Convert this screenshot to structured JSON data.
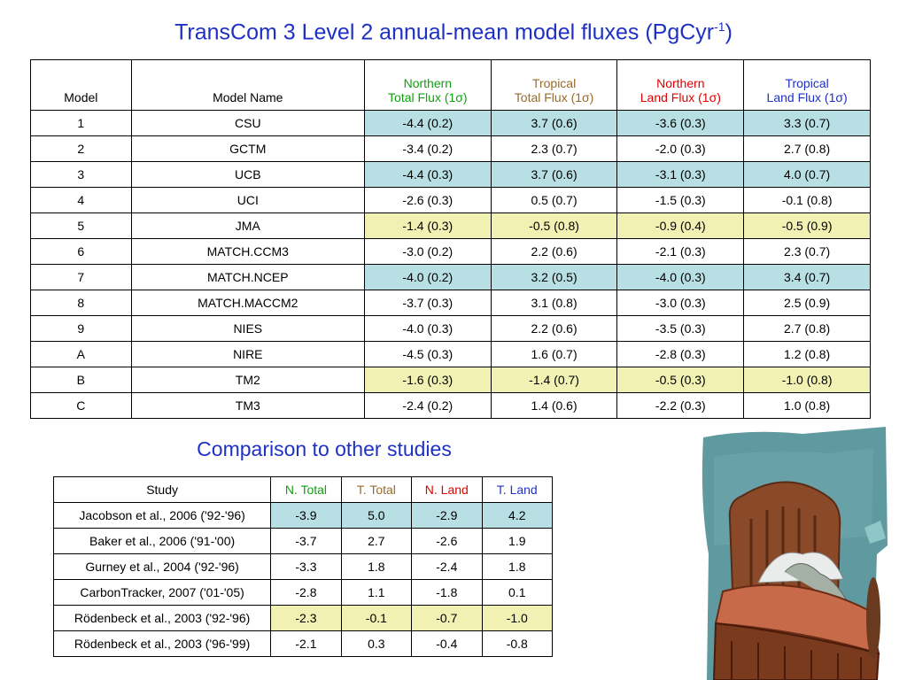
{
  "title": {
    "text": "TransCom 3 Level 2 annual-mean model fluxes (PgCyr",
    "sup": "-1",
    "close": ")"
  },
  "main_table": {
    "headers": {
      "model": "Model",
      "model_name": "Model Name",
      "n_total_1": "Northern",
      "n_total_2": "Total Flux (1σ)",
      "t_total_1": "Tropical",
      "t_total_2": "Total Flux (1σ)",
      "n_land_1": "Northern",
      "n_land_2": "Land Flux (1σ)",
      "t_land_1": "Tropical",
      "t_land_2": "Land Flux (1σ)"
    },
    "rows": [
      {
        "model": "1",
        "name": "CSU",
        "v": [
          "-4.4 (0.2)",
          "3.7 (0.6)",
          "-3.6 (0.3)",
          "3.3 (0.7)"
        ],
        "hl": "blue"
      },
      {
        "model": "2",
        "name": "GCTM",
        "v": [
          "-3.4 (0.2)",
          "2.3 (0.7)",
          "-2.0 (0.3)",
          "2.7 (0.8)"
        ],
        "hl": ""
      },
      {
        "model": "3",
        "name": "UCB",
        "v": [
          "-4.4 (0.3)",
          "3.7 (0.6)",
          "-3.1 (0.3)",
          "4.0 (0.7)"
        ],
        "hl": "blue"
      },
      {
        "model": "4",
        "name": "UCI",
        "v": [
          "-2.6 (0.3)",
          "0.5 (0.7)",
          "-1.5 (0.3)",
          "-0.1 (0.8)"
        ],
        "hl": ""
      },
      {
        "model": "5",
        "name": "JMA",
        "v": [
          "-1.4 (0.3)",
          "-0.5 (0.8)",
          "-0.9 (0.4)",
          "-0.5 (0.9)"
        ],
        "hl": "yellow"
      },
      {
        "model": "6",
        "name": "MATCH.CCM3",
        "v": [
          "-3.0 (0.2)",
          "2.2 (0.6)",
          "-2.1 (0.3)",
          "2.3 (0.7)"
        ],
        "hl": ""
      },
      {
        "model": "7",
        "name": "MATCH.NCEP",
        "v": [
          "-4.0 (0.2)",
          "3.2 (0.5)",
          "-4.0 (0.3)",
          "3.4 (0.7)"
        ],
        "hl": "blue"
      },
      {
        "model": "8",
        "name": "MATCH.MACCM2",
        "v": [
          "-3.7 (0.3)",
          "3.1 (0.8)",
          "-3.0 (0.3)",
          "2.5 (0.9)"
        ],
        "hl": ""
      },
      {
        "model": "9",
        "name": "NIES",
        "v": [
          "-4.0 (0.3)",
          "2.2 (0.6)",
          "-3.5 (0.3)",
          "2.7 (0.8)"
        ],
        "hl": ""
      },
      {
        "model": "A",
        "name": "NIRE",
        "v": [
          "-4.5 (0.3)",
          "1.6 (0.7)",
          "-2.8 (0.3)",
          "1.2 (0.8)"
        ],
        "hl": ""
      },
      {
        "model": "B",
        "name": "TM2",
        "v": [
          "-1.6 (0.3)",
          "-1.4 (0.7)",
          "-0.5 (0.3)",
          "-1.0 (0.8)"
        ],
        "hl": "yellow"
      },
      {
        "model": "C",
        "name": "TM3",
        "v": [
          "-2.4 (0.2)",
          "1.4 (0.6)",
          "-2.2 (0.3)",
          "1.0 (0.8)"
        ],
        "hl": ""
      }
    ]
  },
  "comparison": {
    "title": "Comparison to other studies",
    "headers": {
      "study": "Study",
      "n_total": "N. Total",
      "t_total": "T. Total",
      "n_land": "N. Land",
      "t_land": "T. Land"
    },
    "rows": [
      {
        "study": "Jacobson et al., 2006 ('92-'96)",
        "v": [
          "-3.9",
          "5.0",
          "-2.9",
          "4.2"
        ],
        "hl": "blue"
      },
      {
        "study": "Baker et al., 2006 ('91-'00)",
        "v": [
          "-3.7",
          "2.7",
          "-2.6",
          "1.9"
        ],
        "hl": ""
      },
      {
        "study": "Gurney et al., 2004 ('92-'96)",
        "v": [
          "-3.3",
          "1.8",
          "-2.4",
          "1.8"
        ],
        "hl": ""
      },
      {
        "study": "CarbonTracker, 2007 ('01-'05)",
        "v": [
          "-2.8",
          "1.1",
          "-1.8",
          "0.1"
        ],
        "hl": ""
      },
      {
        "study": "Rödenbeck et al., 2003 ('92-'96)",
        "v": [
          "-2.3",
          "-0.1",
          "-0.7",
          "-1.0"
        ],
        "hl": "yellow"
      },
      {
        "study": "Rödenbeck et al., 2003 ('96-'99)",
        "v": [
          "-2.1",
          "0.3",
          "-0.4",
          "-0.8"
        ],
        "hl": ""
      }
    ]
  },
  "colors": {
    "title_blue": "#1f31c4",
    "n_total_green": "#10a010",
    "t_total_brown": "#9a6a2a",
    "n_land_red": "#e00000",
    "highlight_blue": "#b8dfe4",
    "highlight_yellow": "#f1f1b4"
  },
  "illustration": {
    "icon": "bed-illustration-icon"
  }
}
